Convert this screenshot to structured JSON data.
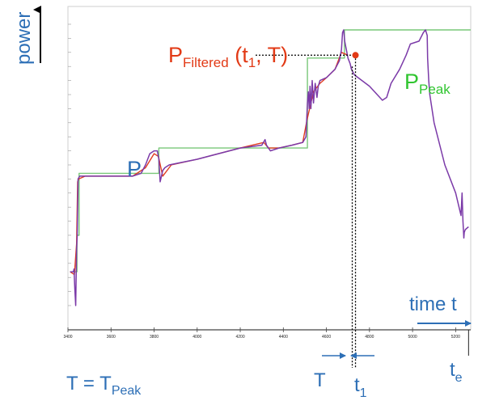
{
  "chart_data": {
    "type": "line",
    "x_ticks": [
      3400,
      3600,
      3800,
      4000,
      4200,
      4400,
      4600,
      4800,
      5000,
      5200
    ],
    "xlim": [
      3400,
      5270
    ],
    "ylim": [
      0,
      100
    ],
    "grid": false,
    "colors": {
      "power": "#7b3aa8",
      "filtered": "#e03c20",
      "peak": "#79c879",
      "label_blue": "#2d6fb6",
      "label_red": "#e23a16",
      "label_green": "#30c530",
      "arrow": "#2d6fb6"
    },
    "labels": {
      "y_axis": "power",
      "x_axis": "time t",
      "P": "P",
      "P_filtered_main": "P",
      "P_filtered_sub": "Filtered",
      "P_filtered_args_open": " (t",
      "P_filtered_args_sub": "1",
      "P_filtered_args_close": ", T)",
      "P_peak_main": "P",
      "P_peak_sub": "Peak",
      "T_eq_main": "T = T",
      "T_eq_sub": "Peak",
      "T": "T",
      "t1_main": "t",
      "t1_sub": "1",
      "te_main": "t",
      "te_sub": "e"
    },
    "series": [
      {
        "role": "power",
        "x": [
          3410,
          3425,
          3428,
          3432,
          3436,
          3440,
          3443,
          3447,
          3455,
          3480,
          3600,
          3700,
          3740,
          3760,
          3780,
          3800,
          3815,
          3822,
          3828,
          3840,
          3850,
          3870,
          4000,
          4200,
          4300,
          4315,
          4322,
          4340,
          4380,
          4440,
          4490,
          4505,
          4512,
          4516,
          4520,
          4524,
          4528,
          4534,
          4540,
          4548,
          4556,
          4562,
          4570,
          4600,
          4640,
          4660,
          4670,
          4675,
          4680,
          4685,
          4690,
          4695,
          4700,
          4710,
          4716,
          4730,
          4800,
          4860,
          4880,
          4900,
          4940,
          4970,
          4990,
          5030,
          5050,
          5060,
          5068,
          5070,
          5075,
          5080,
          5100,
          5150,
          5200,
          5225,
          5230,
          5234,
          5238,
          5240,
          5245,
          5260
        ],
        "y": [
          12,
          12,
          13,
          6,
          0,
          20,
          25,
          45,
          46,
          46,
          46,
          46,
          47,
          50,
          54,
          55,
          55,
          52,
          44,
          48,
          49,
          50,
          52,
          56,
          57,
          59,
          57,
          55,
          56,
          57,
          58,
          60,
          72,
          76,
          70,
          78,
          70,
          80,
          72,
          79,
          74,
          78,
          80,
          81,
          84,
          87,
          91,
          97,
          98,
          94,
          92,
          90,
          88,
          86,
          84,
          82,
          78,
          73,
          74,
          79,
          84,
          89,
          93,
          94,
          97,
          98,
          96,
          88,
          80,
          75,
          65,
          50,
          40,
          32,
          40,
          30,
          24,
          26,
          27,
          28
        ]
      },
      {
        "role": "filtered",
        "x": [
          3410,
          3430,
          3440,
          3445,
          3450,
          3480,
          3600,
          3700,
          3760,
          3800,
          3820,
          3840,
          3880,
          4000,
          4200,
          4310,
          4330,
          4380,
          4440,
          4490,
          4510,
          4540,
          4570,
          4600,
          4640,
          4670,
          4700
        ],
        "y": [
          12,
          11,
          22,
          44,
          45,
          46,
          46,
          46,
          49,
          54,
          53,
          46,
          50,
          52,
          56,
          58,
          56,
          56,
          57,
          58,
          66,
          76,
          79,
          81,
          84,
          90,
          89
        ]
      },
      {
        "role": "peak",
        "x": [
          3410,
          3442,
          3442,
          3452,
          3452,
          3822,
          3822,
          4512,
          4512,
          4684,
          4684,
          5270
        ],
        "y": [
          12,
          12,
          25,
          25,
          47,
          47,
          56,
          56,
          88,
          88,
          98,
          98
        ]
      }
    ],
    "annotations": {
      "marker": {
        "x": 4735,
        "y": 89
      },
      "t1_x": 4735,
      "window_start_x": 4720,
      "te_x": 5260
    }
  }
}
